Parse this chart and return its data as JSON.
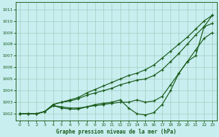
{
  "title": "Graphe pression niveau de la mer (hPa)",
  "bg_color": "#c8eef0",
  "grid_color": "#a0ccbb",
  "line_color": "#1a5c1a",
  "ylim": [
    1001.4,
    1011.6
  ],
  "yticks": [
    1002,
    1003,
    1004,
    1005,
    1006,
    1007,
    1008,
    1009,
    1010,
    1011
  ],
  "xlim": [
    -0.5,
    23.5
  ],
  "xticks": [
    0,
    1,
    2,
    3,
    4,
    5,
    6,
    7,
    8,
    9,
    10,
    11,
    12,
    13,
    14,
    15,
    16,
    17,
    18,
    19,
    20,
    21,
    22,
    23
  ],
  "line1": [
    1002.0,
    1002.0,
    1002.0,
    1002.2,
    1002.8,
    1003.0,
    1003.2,
    1003.4,
    1003.8,
    1004.1,
    1004.4,
    1004.7,
    1005.0,
    1005.3,
    1005.5,
    1005.8,
    1006.2,
    1006.8,
    1007.4,
    1008.0,
    1008.6,
    1009.3,
    1010.0,
    1010.5
  ],
  "line2": [
    1002.0,
    1002.0,
    1002.0,
    1002.2,
    1002.8,
    1003.0,
    1003.1,
    1003.3,
    1003.6,
    1003.8,
    1004.0,
    1004.2,
    1004.5,
    1004.7,
    1004.9,
    1005.0,
    1005.3,
    1005.8,
    1006.5,
    1007.2,
    1008.0,
    1008.8,
    1009.5,
    1009.8
  ],
  "line3": [
    1002.0,
    1002.0,
    1002.0,
    1002.2,
    1002.7,
    1002.6,
    1002.5,
    1002.5,
    1002.6,
    1002.7,
    1002.8,
    1002.9,
    1003.0,
    1003.0,
    1003.2,
    1003.0,
    1003.1,
    1003.5,
    1004.5,
    1005.5,
    1006.5,
    1007.5,
    1008.5,
    1009.0
  ],
  "line4": [
    1002.0,
    1002.0,
    1002.0,
    1002.2,
    1002.7,
    1002.5,
    1002.4,
    1002.4,
    1002.6,
    1002.8,
    1002.9,
    1003.0,
    1003.2,
    1002.5,
    1002.0,
    1001.9,
    1002.1,
    1002.8,
    1004.0,
    1005.5,
    1006.5,
    1007.0,
    1009.5,
    1010.5
  ]
}
